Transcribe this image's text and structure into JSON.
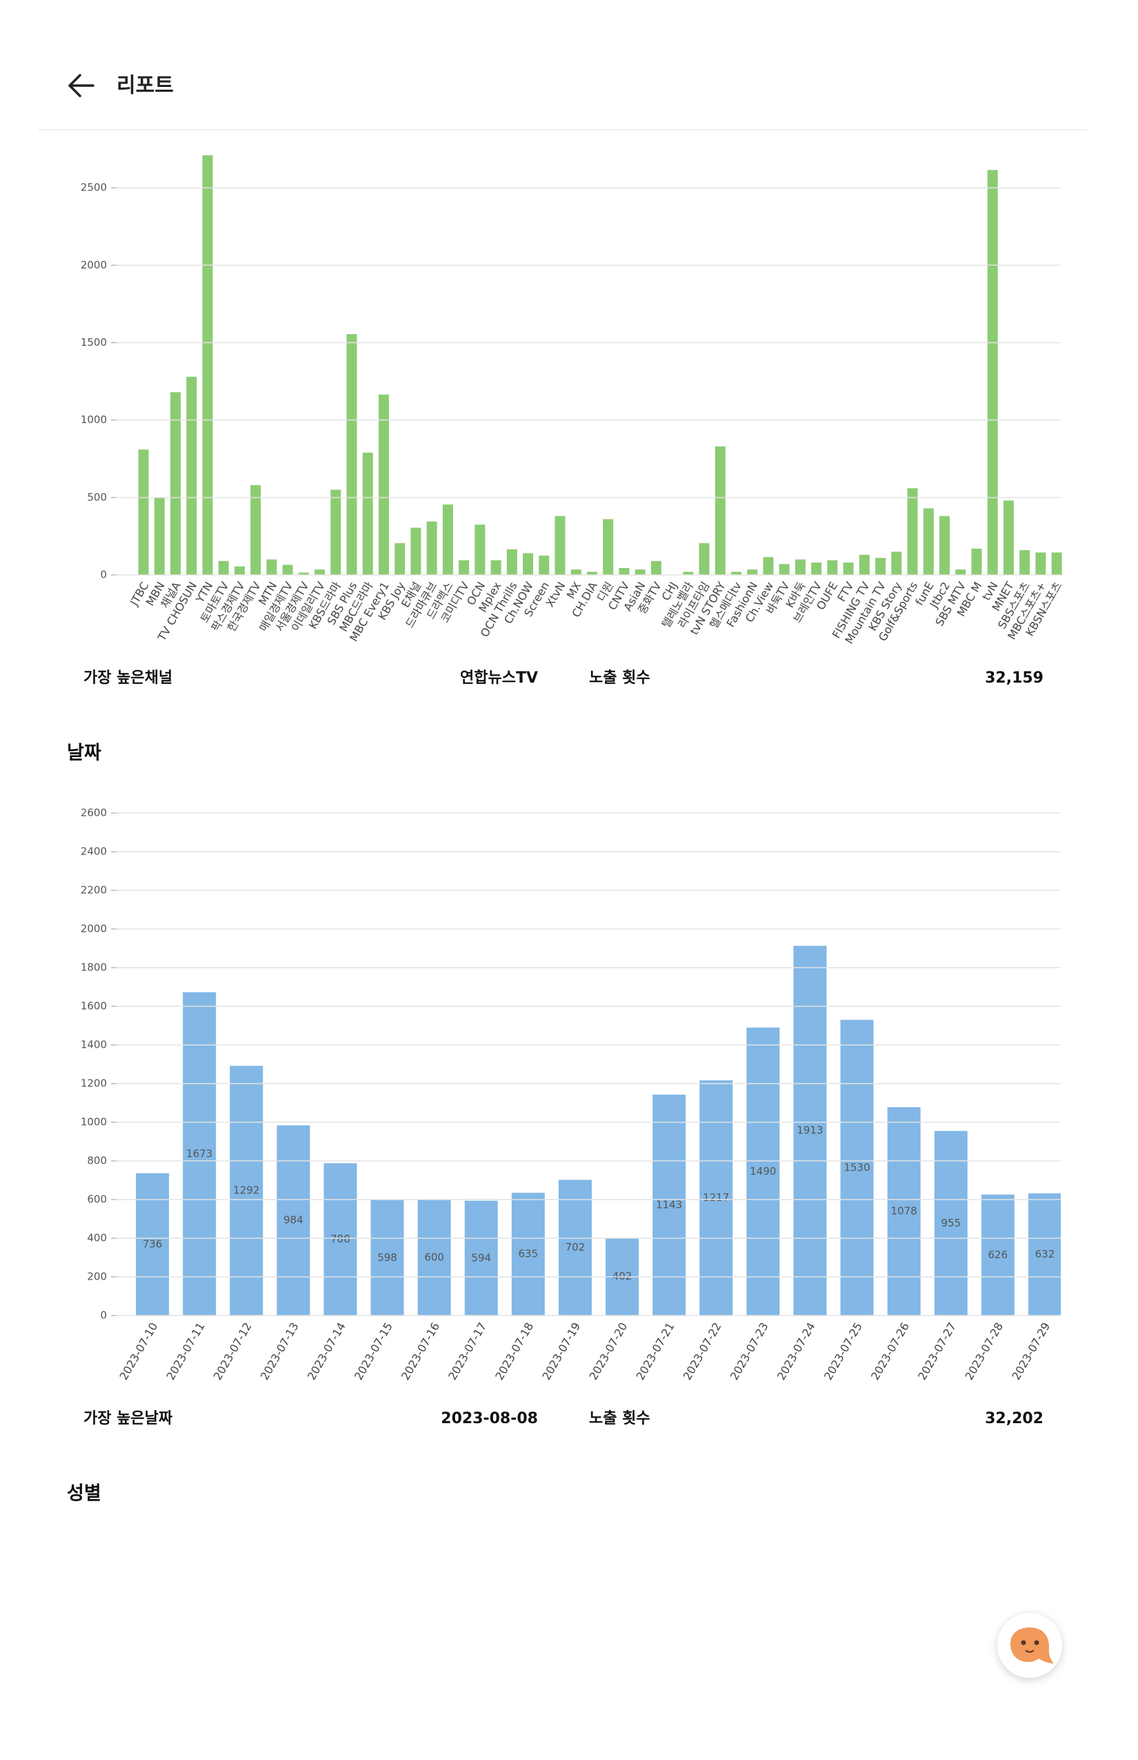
{
  "header": {
    "title": "리포트"
  },
  "chart_data": [
    {
      "type": "bar",
      "categories": [
        "JTBC",
        "MBN",
        "채널A",
        "TV CHOSUN",
        "YTN",
        "토마토TV",
        "팍스경제TV",
        "한국경제TV",
        "MTN",
        "매일경제TV",
        "서울경제TV",
        "이데일리TV",
        "KBS드라마",
        "SBS Plus",
        "MBC드라마",
        "MBC Every1",
        "KBS Joy",
        "E채널",
        "드라마큐브",
        "드라맥스",
        "코미디TV",
        "OCN",
        "Mplex",
        "OCN Thrills",
        "Ch.NOW",
        "Screen",
        "XtvN",
        "MX",
        "CH.DIA",
        "디원",
        "CNTV",
        "AsiaN",
        "중화TV",
        "CHJ",
        "텔레노벨라",
        "라이프타임",
        "tvN STORY",
        "헬스메디tv",
        "FashionN",
        "Ch.View",
        "바둑TV",
        "K바둑",
        "브레인TV",
        "OUFE",
        "FTV",
        "FISHING TV",
        "Mountain TV",
        "KBS Story",
        "Golf&Sports",
        "funE",
        "Jtbc2",
        "SBS MTV",
        "MBC M",
        "tvN",
        "MNET",
        "SBS스포츠",
        "MBC스포츠+",
        "KBSN스포츠"
      ],
      "values": [
        810,
        500,
        1180,
        1280,
        2710,
        90,
        55,
        580,
        100,
        65,
        15,
        35,
        550,
        1555,
        790,
        1165,
        205,
        305,
        345,
        455,
        95,
        325,
        95,
        165,
        140,
        125,
        380,
        35,
        20,
        360,
        45,
        35,
        90,
        2,
        20,
        205,
        830,
        20,
        35,
        115,
        70,
        100,
        80,
        95,
        80,
        130,
        110,
        150,
        560,
        430,
        380,
        35,
        170,
        2615,
        480,
        160,
        145,
        145
      ],
      "color": "#8bcc72",
      "ylim": [
        0,
        2750
      ],
      "yticks": [
        0,
        500,
        1000,
        1500,
        2000,
        2500
      ],
      "grid": true
    },
    {
      "type": "bar",
      "categories": [
        "2023-07-10",
        "2023-07-11",
        "2023-07-12",
        "2023-07-13",
        "2023-07-14",
        "2023-07-15",
        "2023-07-16",
        "2023-07-17",
        "2023-07-18",
        "2023-07-19",
        "2023-07-20",
        "2023-07-21",
        "2023-07-22",
        "2023-07-23",
        "2023-07-24",
        "2023-07-25",
        "2023-07-26",
        "2023-07-27",
        "2023-07-28",
        "2023-07-29"
      ],
      "values": [
        736,
        1673,
        1292,
        984,
        788,
        598,
        600,
        594,
        635,
        702,
        402,
        1143,
        1217,
        1490,
        1913,
        1530,
        1078,
        955,
        626,
        632
      ],
      "color": "#82b7e6",
      "ylim": [
        0,
        2600
      ],
      "yticks": [
        0,
        200,
        400,
        600,
        800,
        1000,
        1200,
        1400,
        1600,
        1800,
        2000,
        2200,
        2400,
        2600
      ],
      "grid": true
    }
  ],
  "summaries": [
    {
      "label": "가장 높은채널",
      "value": "연합뉴스TV",
      "count_label": "노출 횟수",
      "count": "32,159"
    },
    {
      "label": "가장 높은날짜",
      "value": "2023-08-08",
      "count_label": "노출 횟수",
      "count": "32,202"
    }
  ],
  "sections": [
    "날짜",
    "성별"
  ]
}
